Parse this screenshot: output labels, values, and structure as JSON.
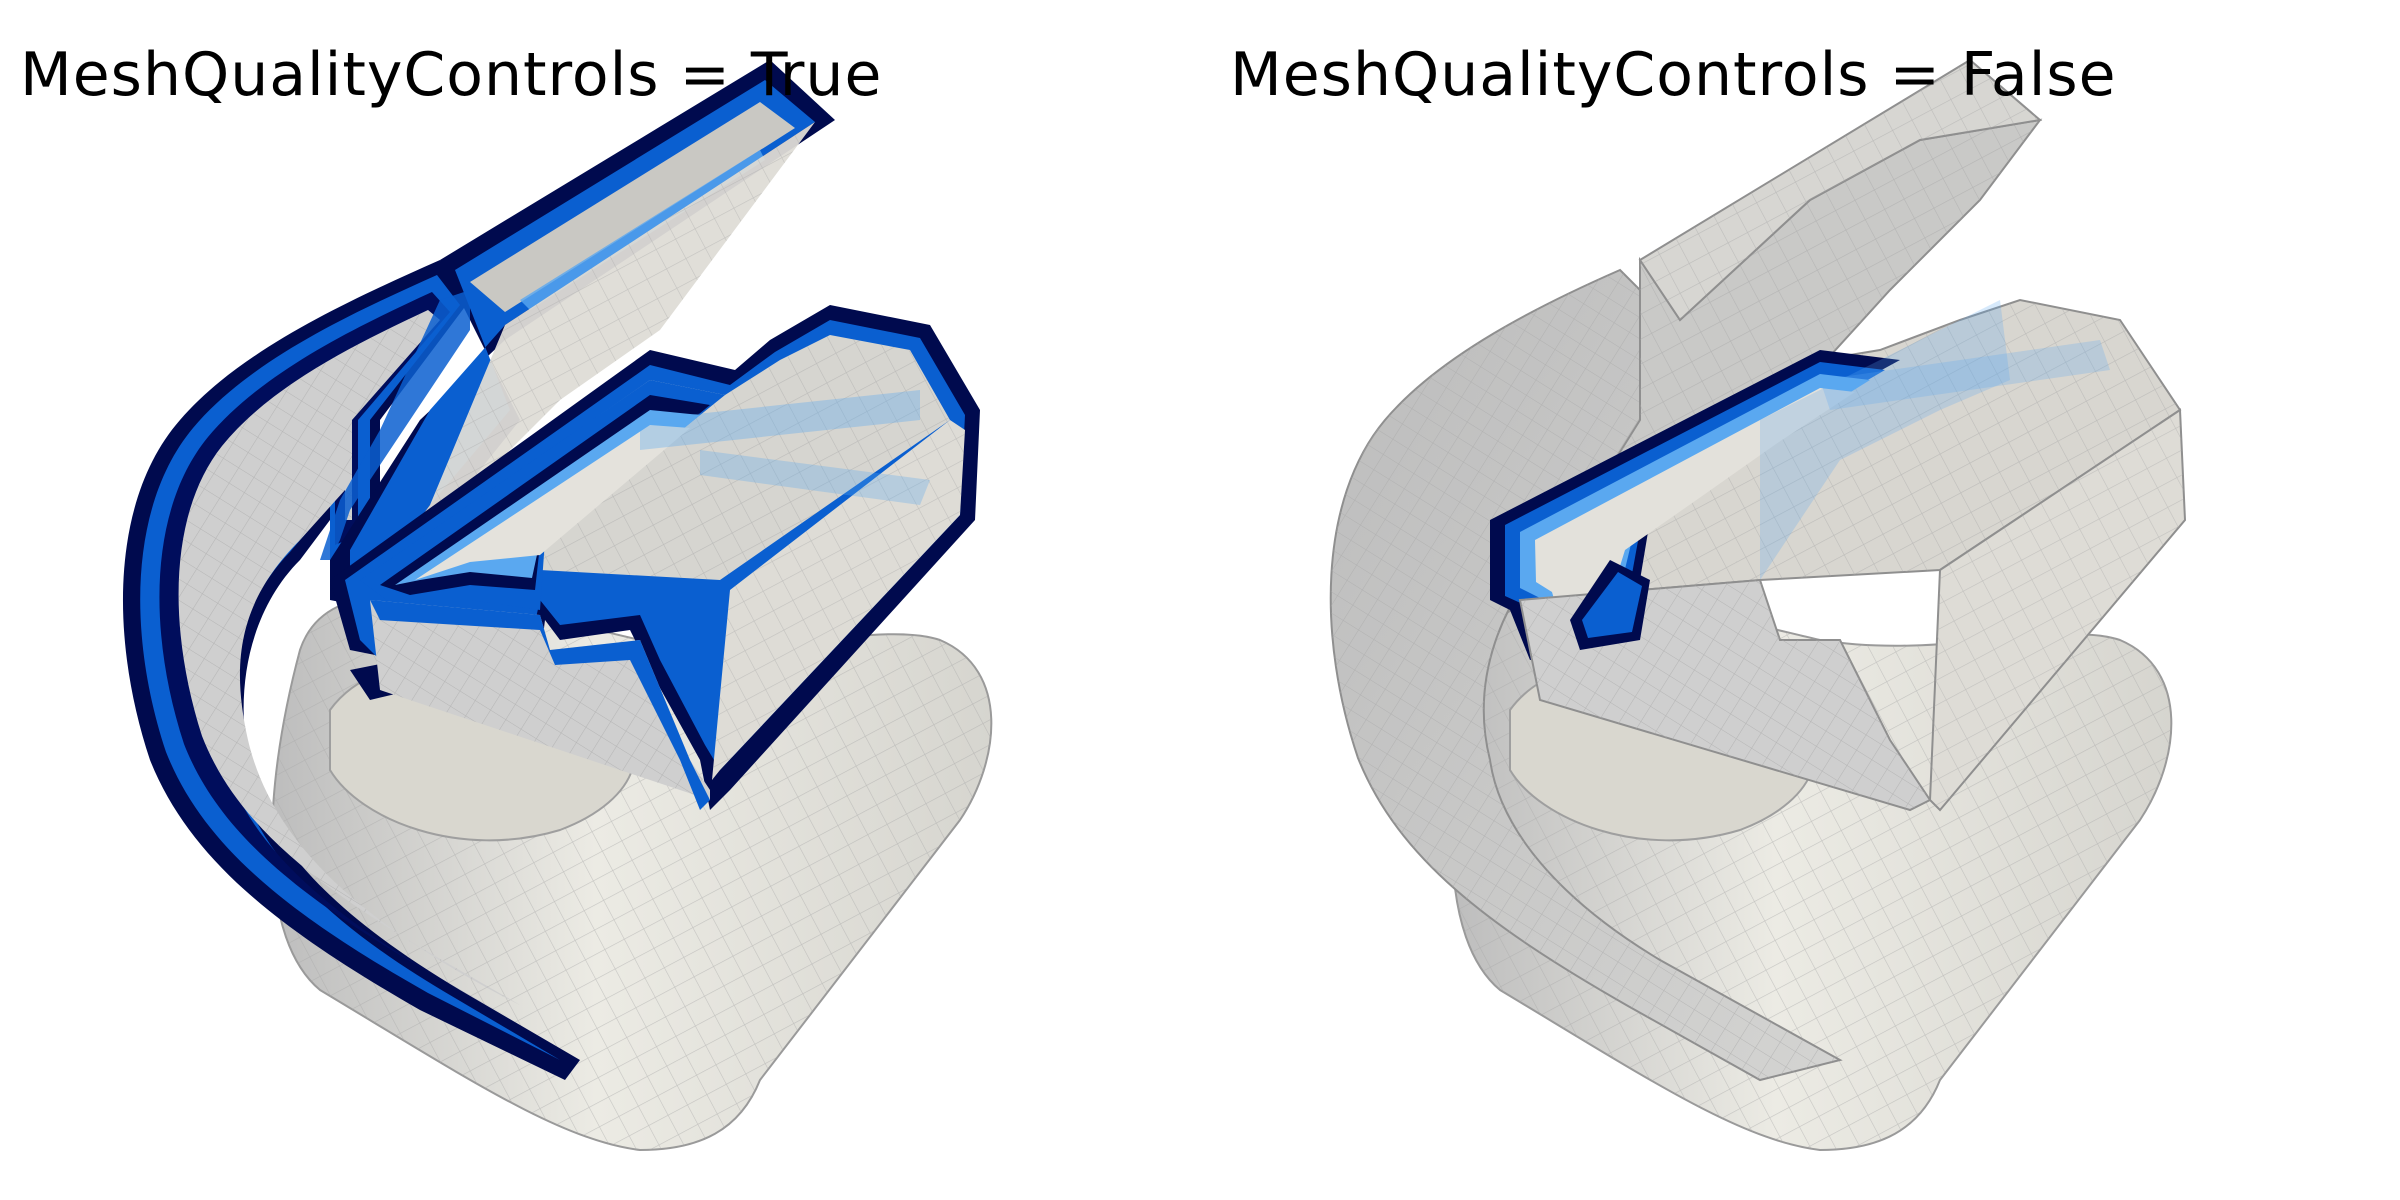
{
  "panels": [
    {
      "title": "MeshQualityControls = True"
    },
    {
      "title": "MeshQualityControls = False"
    }
  ],
  "colors": {
    "background": "#ffffff",
    "surface_light": "#ebe8e0",
    "surface_mid": "#d8d6d2",
    "surface_shadow": "#b9b9b9",
    "grid_line": "#a8a8a8",
    "outline_dark": "#000033",
    "layer_navy": "#00156b",
    "layer_blue": "#0a5fd0",
    "layer_light": "#5aa8f0"
  }
}
